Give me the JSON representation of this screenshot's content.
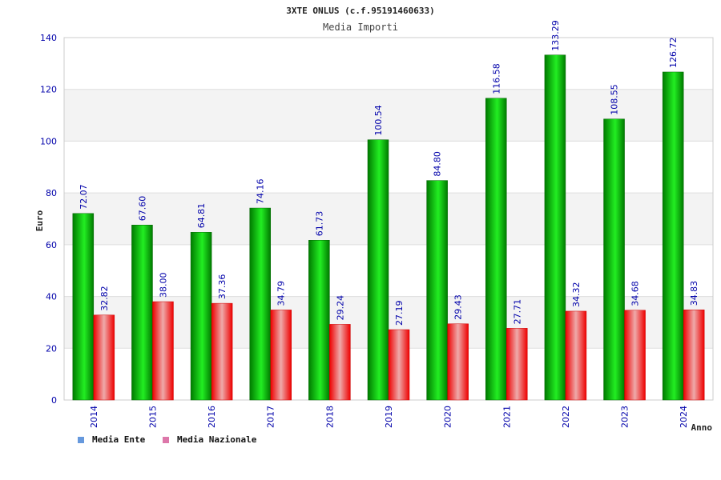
{
  "chart_data": {
    "type": "bar",
    "title": "3XTE ONLUS (c.f.95191460633)",
    "subtitle": "Media Importi",
    "xlabel": "Anno",
    "ylabel": "Euro",
    "ylim": [
      0,
      140
    ],
    "yticks": [
      0,
      20,
      40,
      60,
      80,
      100,
      120,
      140
    ],
    "grid": true,
    "legend_placement": "bottom-left",
    "categories": [
      "2014",
      "2015",
      "2016",
      "2017",
      "2018",
      "2019",
      "2020",
      "2021",
      "2022",
      "2023",
      "2024"
    ],
    "series": [
      {
        "name": "Media Ente",
        "values": [
          72.07,
          67.6,
          64.81,
          74.16,
          61.73,
          100.54,
          84.8,
          116.58,
          133.29,
          108.55,
          126.72
        ],
        "labels": [
          "72.07",
          "67.60",
          "64.81",
          "74.16",
          "61.73",
          "100.54",
          "84.80",
          "116.58",
          "133.29",
          "108.55",
          "126.72"
        ]
      },
      {
        "name": "Media Nazionale",
        "values": [
          32.82,
          38.0,
          37.36,
          34.79,
          29.24,
          27.19,
          29.43,
          27.71,
          34.32,
          34.68,
          34.83
        ],
        "labels": [
          "32.82",
          "38.00",
          "37.36",
          "34.79",
          "29.24",
          "27.19",
          "29.43",
          "27.71",
          "34.32",
          "34.68",
          "34.83"
        ]
      }
    ],
    "colors": {
      "ente_bar_dark": "#008a00",
      "ente_bar_light": "#22ee22",
      "naz_bar_dark": "#ee0000",
      "naz_bar_light": "#eeaaaa",
      "ente_legend": "#6699dd",
      "naz_legend": "#dd77aa",
      "label_blue": "#0000aa",
      "band_grey": "#f3f3f3",
      "grid_line": "#dddddd"
    }
  }
}
